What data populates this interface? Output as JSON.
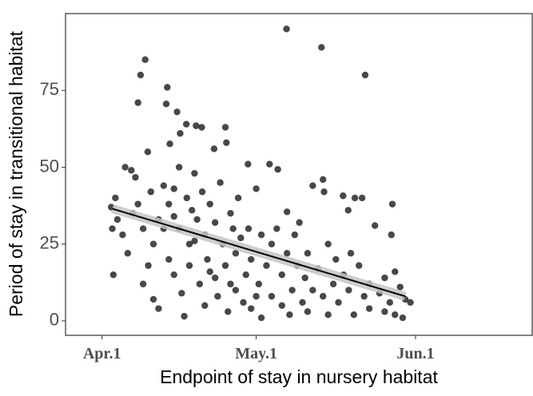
{
  "chart_data": {
    "type": "scatter",
    "xlabel": "Endpoint of stay in nursery habitat",
    "ylabel": "Period of stay in transitional habitat",
    "xlim": [
      -7.1,
      83.7
    ],
    "ylim": [
      -4.7,
      100
    ],
    "xticks": [
      {
        "value": 0,
        "label": "Apr.1"
      },
      {
        "value": 30,
        "label": "May.1"
      },
      {
        "value": 61,
        "label": "Jun.1"
      }
    ],
    "yticks": [
      0,
      25,
      50,
      75
    ],
    "grid": false,
    "color": "#1a1a1a",
    "fit": {
      "x": [
        2,
        59
      ],
      "y": [
        36.5,
        8
      ],
      "color": "#000000",
      "band_color": "#c4c4c4"
    },
    "x": [
      2,
      2.2,
      1.8,
      2.6,
      3,
      4.5,
      5.7,
      6.5,
      4,
      5,
      6,
      7,
      7.5,
      8.4,
      8.9,
      7,
      8,
      8,
      9,
      9.5,
      10,
      10,
      11,
      11,
      12,
      12.5,
      12.7,
      13.2,
      13,
      13,
      14,
      14,
      14.6,
      15.2,
      15,
      15,
      15.5,
      16,
      16.4,
      16.5,
      17,
      17,
      17.5,
      18,
      18.3,
      18.5,
      19,
      19.4,
      19.5,
      20,
      20,
      20.5,
      21,
      21.8,
      22,
      22,
      22.5,
      23,
      23.5,
      24,
      24.2,
      24,
      24.5,
      25,
      25.5,
      26,
      26,
      26.5,
      27,
      27.5,
      28,
      28.4,
      28.5,
      29,
      29,
      30,
      30.5,
      31,
      31,
      32,
      32.6,
      33,
      33,
      34.2,
      34,
      35,
      35,
      35.9,
      36,
      36,
      36.5,
      37,
      37.5,
      38,
      38.4,
      39,
      39.5,
      40,
      40,
      41,
      41,
      42,
      42.7,
      43,
      43.2,
      43,
      44,
      44,
      45,
      45.5,
      46,
      46.9,
      47,
      47.9,
      48,
      48.4,
      49,
      49.2,
      50,
      50.6,
      51,
      51.2,
      52,
      52,
      53.1,
      54,
      55,
      55,
      56,
      56.3,
      56.5,
      57,
      57,
      58,
      58.5,
      59,
      60,
      12,
      18,
      21,
      25,
      30,
      14
    ],
    "y": [
      30,
      15,
      37,
      40,
      33,
      50,
      49,
      46.7,
      28,
      22,
      35,
      71,
      80,
      85,
      55,
      38,
      30,
      12,
      18,
      42,
      25,
      7,
      33,
      4,
      44,
      70.6,
      76,
      57.6,
      38,
      20,
      15,
      43,
      68,
      61,
      50,
      30,
      9,
      1.5,
      64,
      40,
      25,
      18,
      36,
      48,
      63.5,
      33,
      12,
      63,
      42,
      28,
      5,
      20,
      38,
      56,
      32,
      14,
      8,
      45,
      25,
      63,
      58,
      18,
      3,
      35,
      30,
      22,
      10,
      40,
      27,
      6,
      15,
      51,
      30,
      4,
      20,
      43,
      12,
      28,
      1,
      18,
      51,
      8,
      25,
      49.3,
      30,
      5,
      15,
      95,
      35.5,
      22,
      2,
      10,
      28,
      18,
      32,
      6,
      14,
      22,
      3,
      44,
      10,
      17,
      89,
      46,
      42,
      8,
      25,
      2,
      12,
      20,
      6,
      40.7,
      15,
      36,
      10,
      22,
      2,
      40,
      18,
      40,
      8,
      80,
      12,
      4,
      31,
      9,
      14,
      3,
      6,
      28,
      38,
      16,
      2,
      11,
      1,
      7,
      6,
      30,
      26,
      16,
      12,
      8,
      34
    ]
  }
}
